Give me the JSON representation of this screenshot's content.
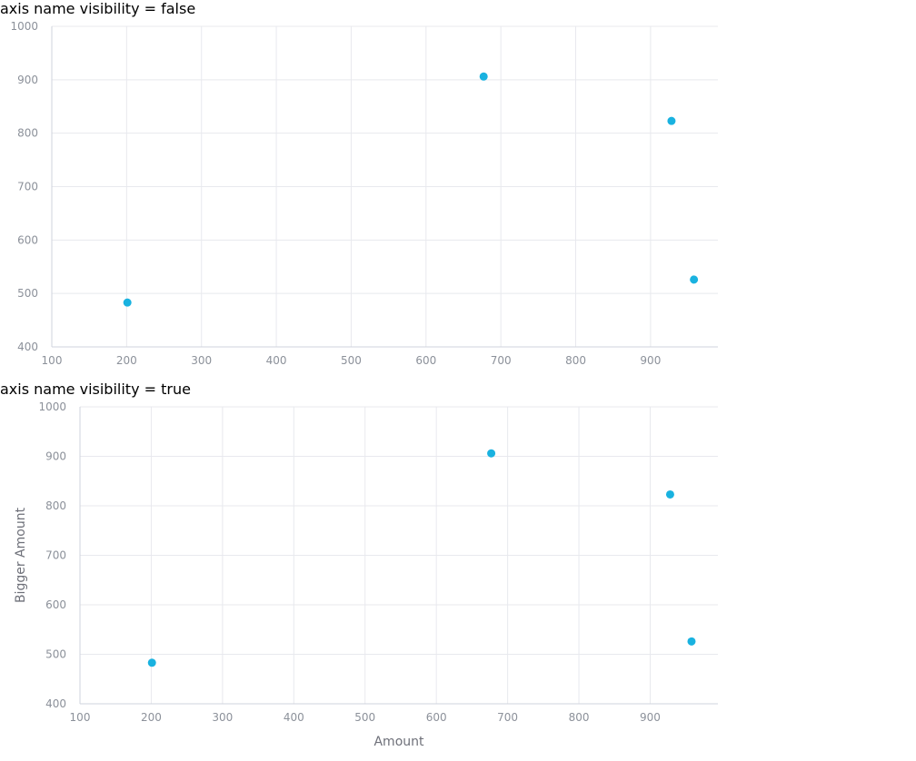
{
  "chart_data": [
    {
      "type": "scatter",
      "title": "axis name visibility = false",
      "xlabel": "",
      "ylabel": "",
      "xlim": [
        100,
        990
      ],
      "ylim": [
        400,
        1000
      ],
      "xticks": [
        100,
        200,
        300,
        400,
        500,
        600,
        700,
        800,
        900
      ],
      "yticks": [
        400,
        500,
        600,
        700,
        800,
        900,
        1000
      ],
      "grid": true,
      "color": "#19b2e0",
      "points": [
        {
          "x": 201,
          "y": 483
        },
        {
          "x": 677,
          "y": 906
        },
        {
          "x": 928,
          "y": 823
        },
        {
          "x": 958,
          "y": 526
        }
      ]
    },
    {
      "type": "scatter",
      "title": "axis name visibility = true",
      "xlabel": "Amount",
      "ylabel": "Bigger Amount",
      "xlim": [
        100,
        995
      ],
      "ylim": [
        400,
        1000
      ],
      "xticks": [
        100,
        200,
        300,
        400,
        500,
        600,
        700,
        800,
        900
      ],
      "yticks": [
        400,
        500,
        600,
        700,
        800,
        900,
        1000
      ],
      "grid": true,
      "color": "#19b2e0",
      "points": [
        {
          "x": 201,
          "y": 483
        },
        {
          "x": 677,
          "y": 906
        },
        {
          "x": 928,
          "y": 823
        },
        {
          "x": 958,
          "y": 526
        }
      ]
    }
  ]
}
